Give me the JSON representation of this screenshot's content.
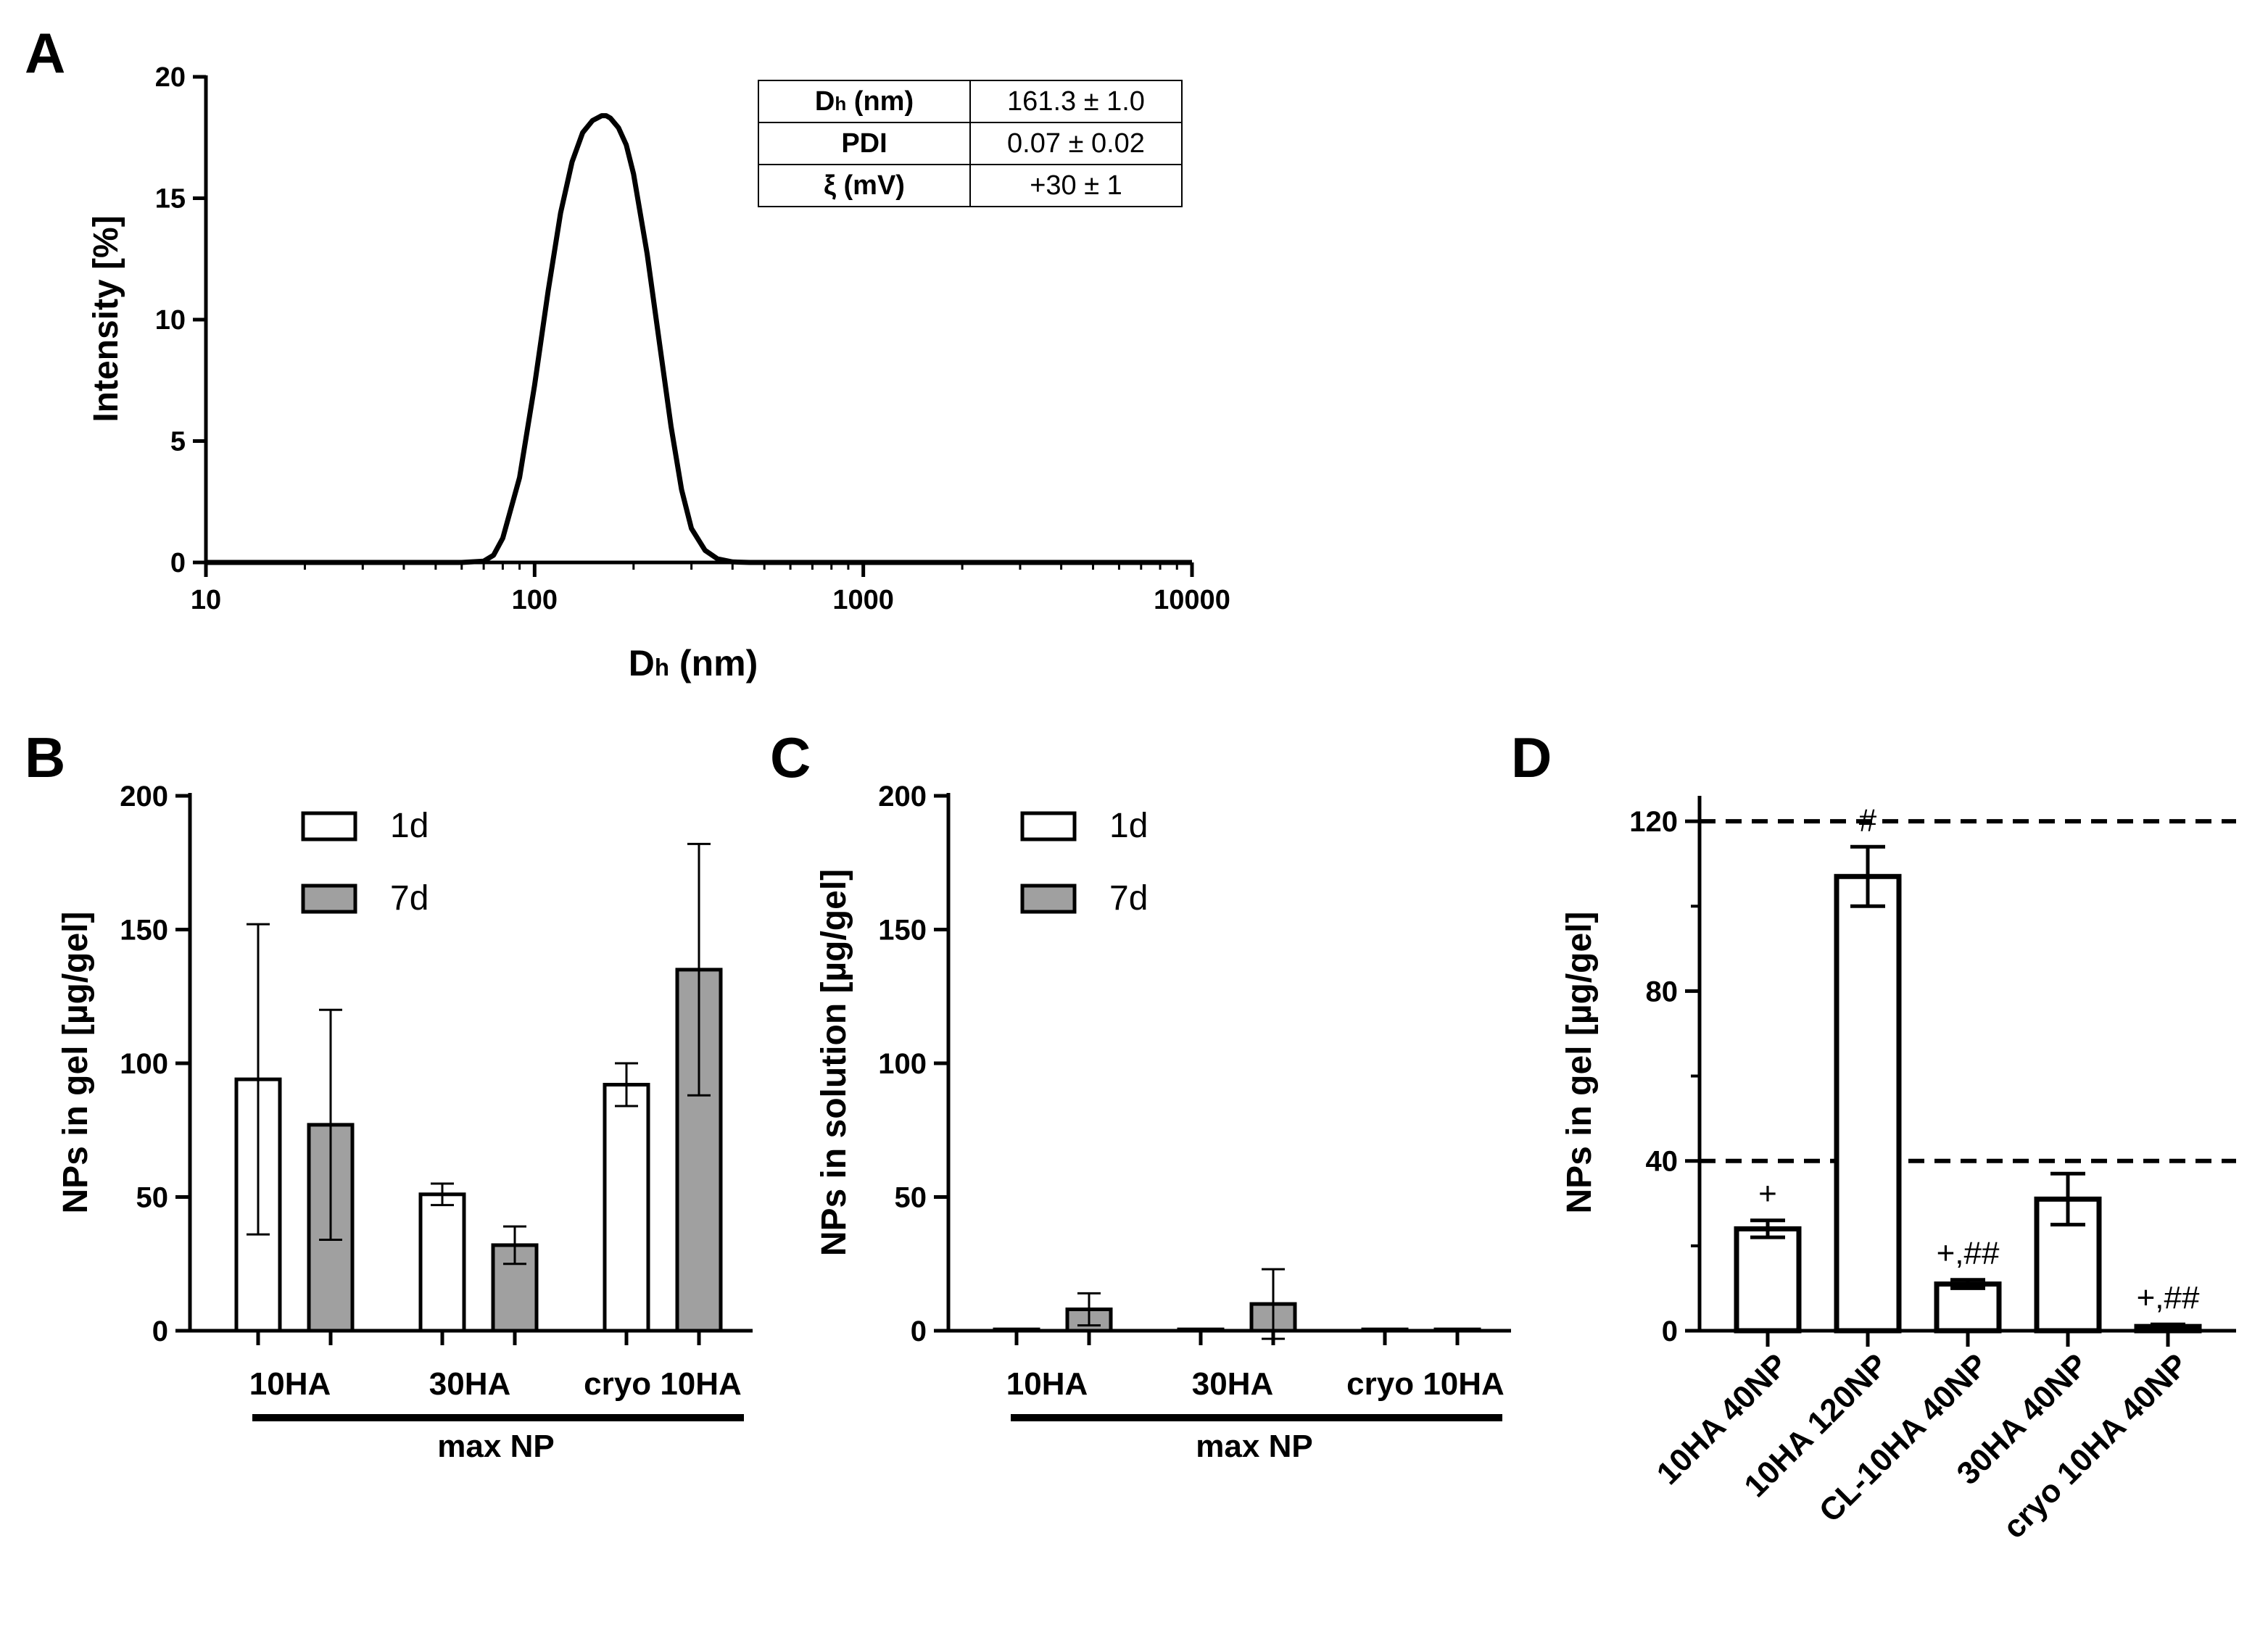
{
  "panel_a": {
    "letter": "A",
    "table": [
      {
        "key": "Dh (nm)",
        "key_main": "D",
        "key_sub": "h",
        "key_rest": " (nm)",
        "value": "161.3 ± 1.0"
      },
      {
        "key": "PDI",
        "key_main": "PDI",
        "key_sub": "",
        "key_rest": "",
        "value": "0.07 ± 0.02"
      },
      {
        "key": "ξ (mV)",
        "key_main": "ξ (mV)",
        "key_sub": "",
        "key_rest": "",
        "value": "+30 ± 1"
      }
    ]
  },
  "panel_b": {
    "letter": "B",
    "bracket_label": "max NP"
  },
  "panel_c": {
    "letter": "C",
    "bracket_label": "max NP"
  },
  "panel_d": {
    "letter": "D"
  },
  "chart_data": [
    {
      "id": "A",
      "type": "line",
      "title": "",
      "xlabel": "Dh (nm)",
      "xlabel_main": "D",
      "xlabel_sub": "h",
      "xlabel_rest": " (nm)",
      "ylabel": "Intensity [%]",
      "xscale": "log",
      "xlim": [
        10,
        10000
      ],
      "ylim": [
        0,
        20
      ],
      "xticks": [
        10,
        100,
        1000,
        10000
      ],
      "xtick_labels": [
        "10",
        "100",
        "1000",
        "10000"
      ],
      "yticks": [
        0,
        5,
        10,
        15,
        20
      ],
      "ytick_labels": [
        "0",
        "5",
        "10",
        "15",
        "20"
      ],
      "series": [
        {
          "name": "Intensity",
          "x": [
            60,
            70,
            75,
            80,
            90,
            100,
            110,
            120,
            130,
            140,
            150,
            160,
            165,
            170,
            180,
            190,
            200,
            220,
            240,
            260,
            280,
            300,
            330,
            360,
            400,
            450
          ],
          "y": [
            0,
            0.05,
            0.3,
            1.0,
            3.5,
            7.3,
            11.2,
            14.4,
            16.5,
            17.7,
            18.2,
            18.4,
            18.4,
            18.3,
            17.9,
            17.2,
            16.0,
            12.7,
            9.0,
            5.6,
            3.0,
            1.4,
            0.5,
            0.15,
            0.02,
            0
          ]
        }
      ]
    },
    {
      "id": "B",
      "type": "bar",
      "title": "",
      "xlabel": "max NP",
      "ylabel": "NPs in gel [µg/gel]",
      "categories": [
        "10HA",
        "30HA",
        "cryo 10HA"
      ],
      "ylim": [
        0,
        200
      ],
      "yticks": [
        0,
        50,
        100,
        150,
        200
      ],
      "ytick_labels": [
        "0",
        "50",
        "100",
        "150",
        "200"
      ],
      "legend": "top-center",
      "series": [
        {
          "name": "1d",
          "color": "#ffffff",
          "values": [
            94,
            51,
            92
          ],
          "errors": [
            58,
            4,
            8
          ]
        },
        {
          "name": "7d",
          "color": "#a0a0a0",
          "values": [
            77,
            32,
            135
          ],
          "errors": [
            43,
            7,
            47
          ]
        }
      ]
    },
    {
      "id": "C",
      "type": "bar",
      "title": "",
      "xlabel": "max NP",
      "ylabel": "NPs in solution [µg/gel]",
      "categories": [
        "10HA",
        "30HA",
        "cryo 10HA"
      ],
      "ylim": [
        0,
        200
      ],
      "yticks": [
        0,
        50,
        100,
        150,
        200
      ],
      "ytick_labels": [
        "0",
        "50",
        "100",
        "150",
        "200"
      ],
      "legend": "top-center",
      "series": [
        {
          "name": "1d",
          "color": "#ffffff",
          "values": [
            0.5,
            0.5,
            0.5
          ],
          "errors": [
            0,
            0,
            0
          ]
        },
        {
          "name": "7d",
          "color": "#a0a0a0",
          "values": [
            8,
            10,
            0.5
          ],
          "errors": [
            6,
            13,
            0
          ]
        }
      ]
    },
    {
      "id": "D",
      "type": "bar",
      "title": "",
      "xlabel": "",
      "ylabel": "NPs in gel [µg/gel]",
      "categories": [
        "10HA 40NP",
        "10HA 120NP",
        "CL-10HA 40NP",
        "30HA 40NP",
        "cryo 10HA 40NP"
      ],
      "ylim": [
        0,
        126
      ],
      "yticks": [
        0,
        40,
        80,
        120
      ],
      "ytick_labels": [
        "0",
        "40",
        "80",
        "120"
      ],
      "reference_lines": [
        40,
        120
      ],
      "series": [
        {
          "name": "NPs in gel",
          "color": "#ffffff",
          "values": [
            24,
            107,
            11,
            31,
            1
          ],
          "errors": [
            2,
            7,
            1,
            6,
            0.5
          ]
        }
      ],
      "annotations": [
        "+",
        "#",
        "+,##",
        "",
        "+,##"
      ]
    }
  ]
}
